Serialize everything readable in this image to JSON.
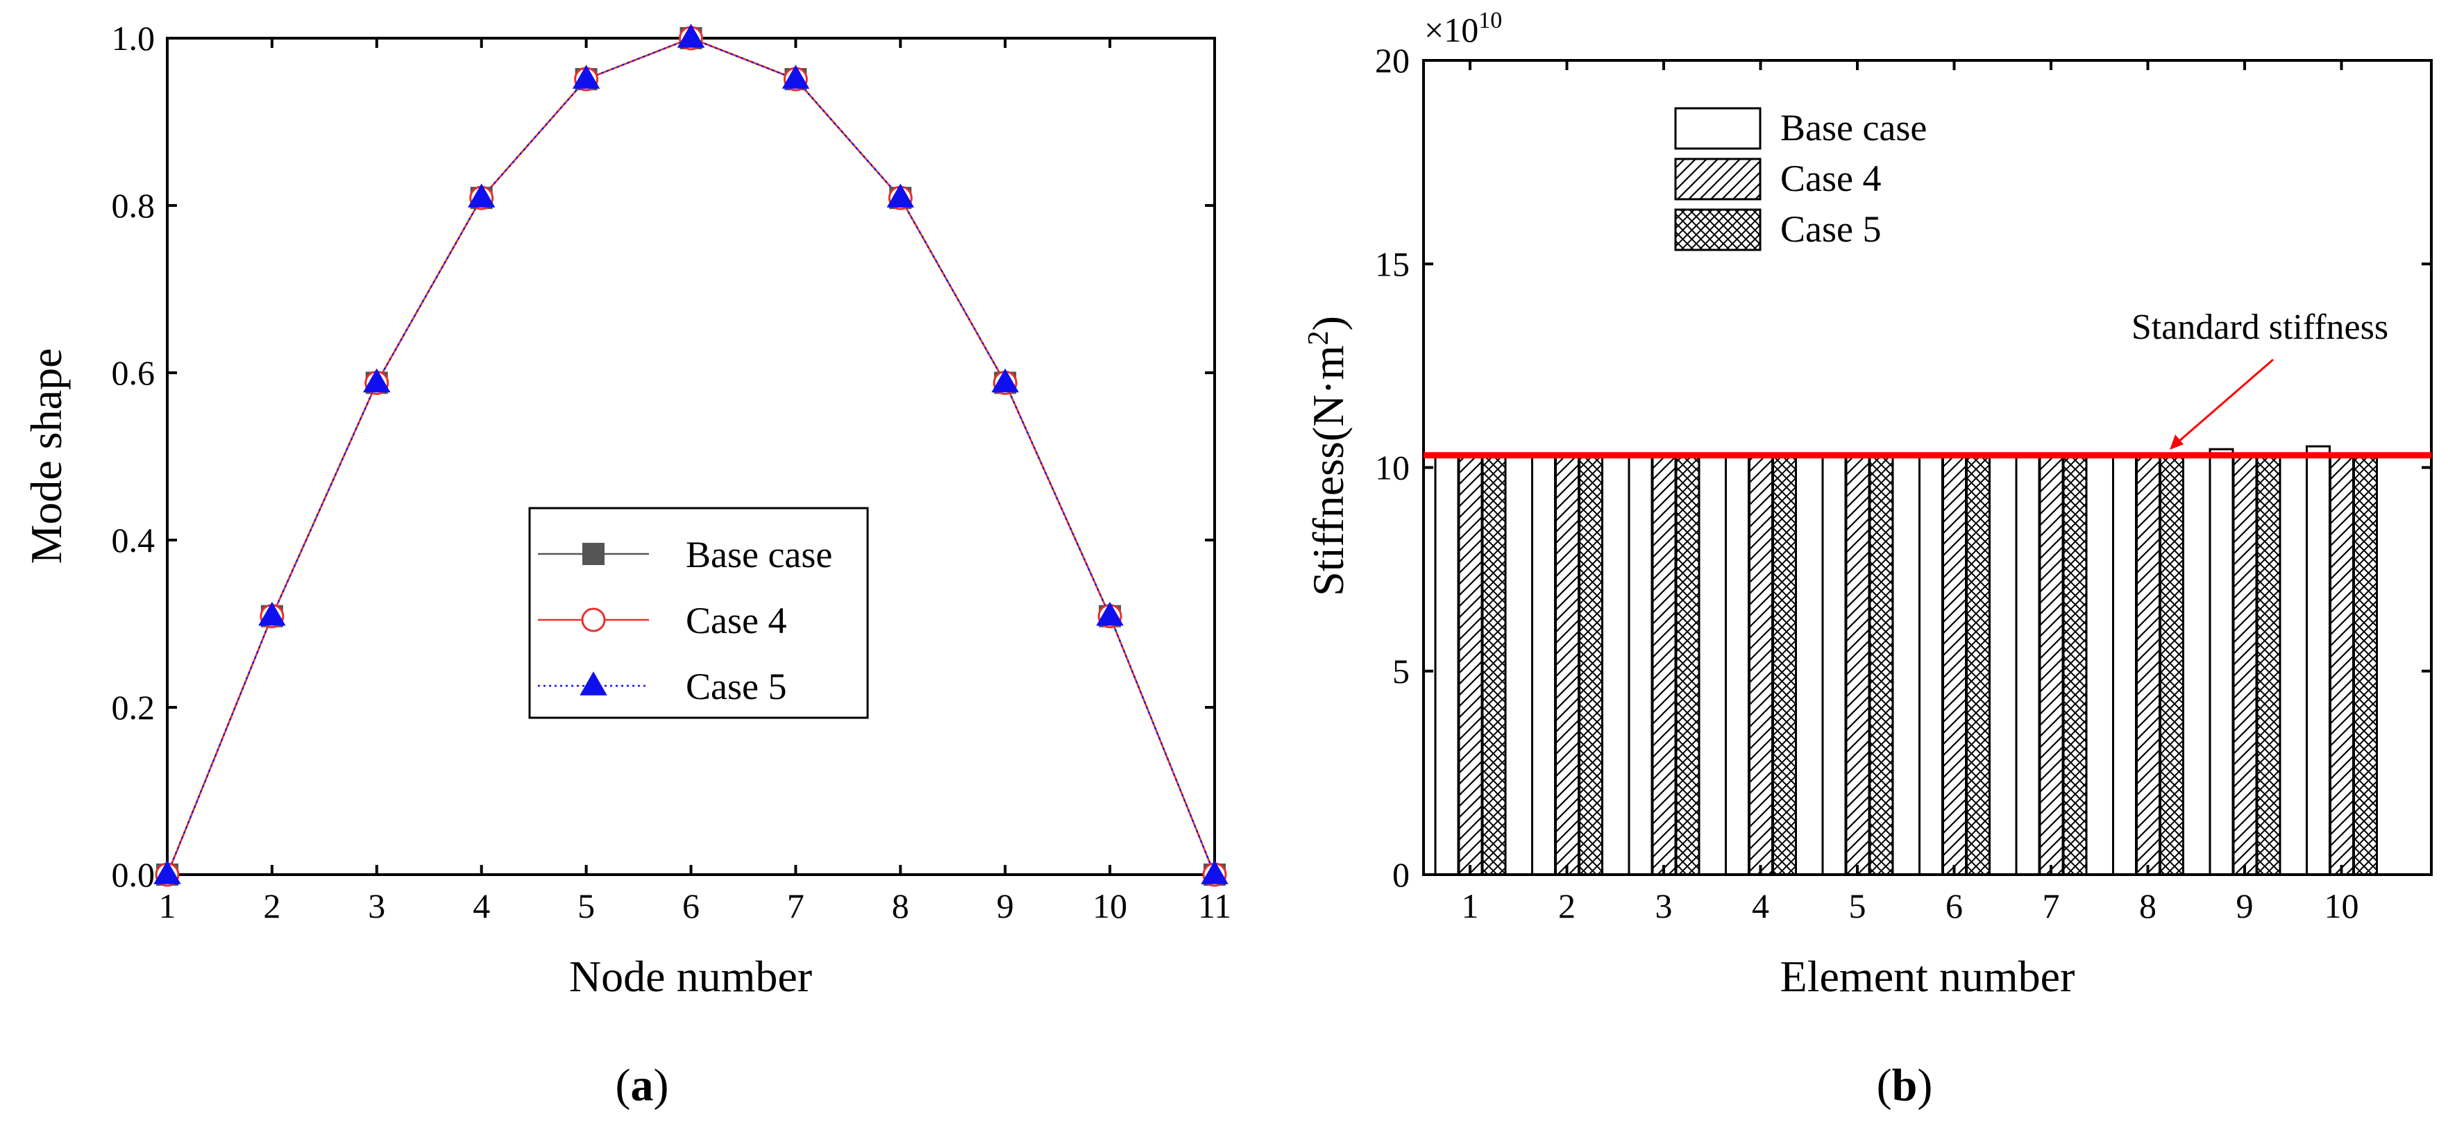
{
  "chart_data": [
    {
      "type": "line",
      "panel_label": "(a)",
      "panel_letter": "a",
      "xlabel": "Node number",
      "ylabel": "Mode shape",
      "xlim": [
        1,
        11
      ],
      "ylim": [
        0.0,
        1.0
      ],
      "x_ticks": [
        "1",
        "2",
        "3",
        "4",
        "5",
        "6",
        "7",
        "8",
        "9",
        "10",
        "11"
      ],
      "y_ticks": [
        "0.0",
        "0.2",
        "0.4",
        "0.6",
        "0.8",
        "1.0"
      ],
      "x": [
        1,
        2,
        3,
        4,
        5,
        6,
        7,
        8,
        9,
        10,
        11
      ],
      "series": [
        {
          "name": "Base case",
          "values": [
            0,
            0.309,
            0.588,
            0.809,
            0.951,
            1.0,
            0.951,
            0.809,
            0.588,
            0.309,
            0
          ],
          "color": "#555555",
          "marker": "square"
        },
        {
          "name": "Case 4",
          "values": [
            0,
            0.309,
            0.588,
            0.809,
            0.951,
            1.0,
            0.951,
            0.809,
            0.588,
            0.309,
            0
          ],
          "color": "#e8302a",
          "marker": "circle-open"
        },
        {
          "name": "Case 5",
          "values": [
            0,
            0.309,
            0.588,
            0.809,
            0.951,
            1.0,
            0.951,
            0.809,
            0.588,
            0.309,
            0
          ],
          "color": "#1010ee",
          "marker": "triangle"
        }
      ],
      "legend": "center-right"
    },
    {
      "type": "bar",
      "panel_label": "(b)",
      "panel_letter": "b",
      "xlabel": "Element number",
      "ylabel": "Stiffness(N·m²)",
      "ylabel_main": "Stiffness(N·m",
      "ylabel_sup": "2",
      "ylabel_end": ")",
      "y_multiplier_base": "×10",
      "y_multiplier_exp": "10",
      "ylim": [
        0,
        20
      ],
      "y_ticks": [
        "0",
        "5",
        "10",
        "15",
        "20"
      ],
      "categories": [
        "1",
        "2",
        "3",
        "4",
        "5",
        "6",
        "7",
        "8",
        "9",
        "10"
      ],
      "series": [
        {
          "name": "Base case",
          "values": [
            10.3,
            10.3,
            10.3,
            10.3,
            10.3,
            10.3,
            10.3,
            10.3,
            10.45,
            10.52
          ],
          "pattern": "none"
        },
        {
          "name": "Case 4",
          "values": [
            10.3,
            10.3,
            10.3,
            10.3,
            10.3,
            10.3,
            10.3,
            10.3,
            10.3,
            10.3
          ],
          "pattern": "hatch"
        },
        {
          "name": "Case 5",
          "values": [
            10.3,
            10.3,
            10.3,
            10.3,
            10.3,
            10.3,
            10.3,
            10.3,
            10.3,
            10.3
          ],
          "pattern": "crosshatch"
        }
      ],
      "reference_line": {
        "label": "Standard stiffness",
        "value": 10.3,
        "color": "#ff0000"
      },
      "legend": "top-left"
    }
  ]
}
